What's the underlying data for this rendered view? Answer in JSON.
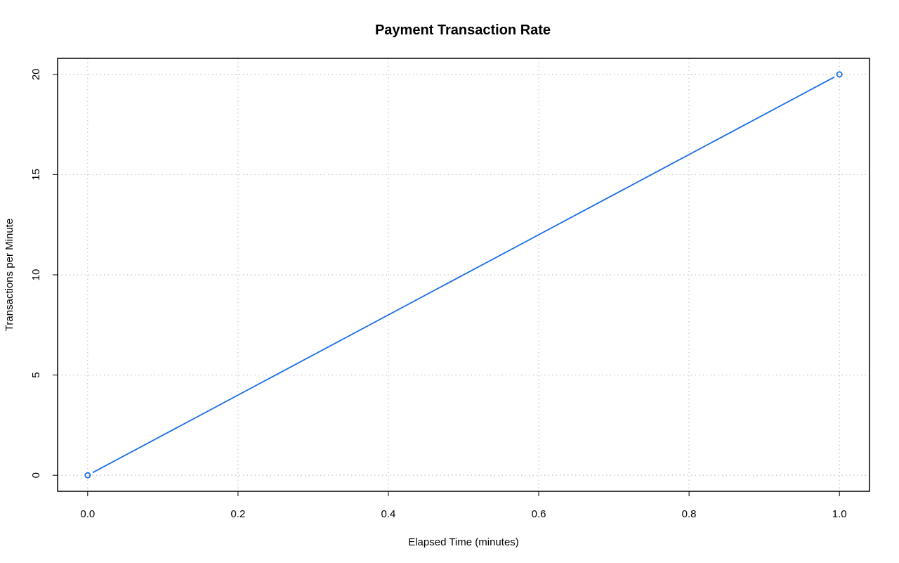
{
  "chart_data": {
    "type": "line",
    "title": "Payment Transaction Rate",
    "xlabel": "Elapsed Time (minutes)",
    "ylabel": "Transactions per Minute",
    "x": [
      0.0,
      1.0
    ],
    "series": [
      {
        "values": [
          0,
          20
        ]
      }
    ],
    "xlim": [
      -0.04,
      1.04
    ],
    "ylim": [
      -0.8,
      20.8
    ],
    "xticks": [
      0.0,
      0.2,
      0.4,
      0.6,
      0.8,
      1.0
    ],
    "xtick_labels": [
      "0.0",
      "0.2",
      "0.4",
      "0.6",
      "0.8",
      "1.0"
    ],
    "yticks": [
      0,
      5,
      10,
      15,
      20
    ],
    "ytick_labels": [
      "0",
      "5",
      "10",
      "15",
      "20"
    ],
    "grid": true,
    "markers": "open-circle",
    "colors": {
      "series": "#1a6ee6",
      "grid": "#c8c8c8",
      "frame": "#000000"
    }
  }
}
